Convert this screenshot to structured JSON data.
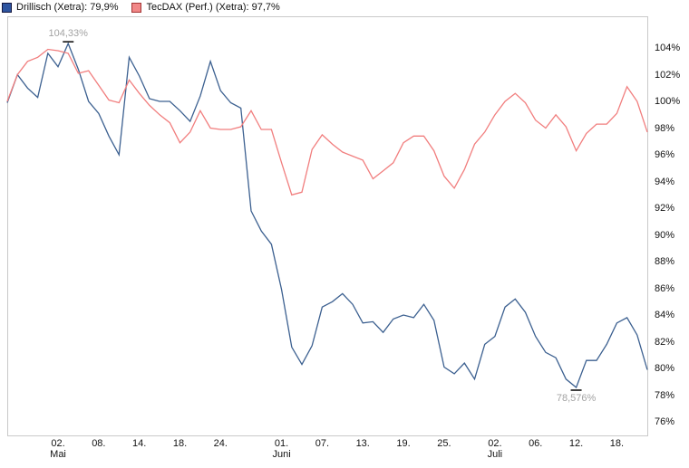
{
  "legend": {
    "items": [
      {
        "label": "Drillisch (Xetra): 79,9%",
        "color": "#2e55a0",
        "border": "#15173f"
      },
      {
        "label": "TecDAX (Perf.) (Xetra): 97,7%",
        "color": "#f18787",
        "border": "#a23535"
      }
    ]
  },
  "chart_data": {
    "type": "line",
    "title": "",
    "grid": false,
    "legend_position": "top-left",
    "y_axis": {
      "min": 76,
      "max": 104,
      "step": 2,
      "unit": "%",
      "side": "right",
      "labels": [
        "104%",
        "102%",
        "100%",
        "98%",
        "96%",
        "94%",
        "92%",
        "90%",
        "88%",
        "86%",
        "84%",
        "82%",
        "80%",
        "78%",
        "76%"
      ]
    },
    "x_axis": {
      "ticks": [
        {
          "day": "02.",
          "month": "Mai",
          "index": 5
        },
        {
          "day": "08.",
          "index": 9
        },
        {
          "day": "14.",
          "index": 13
        },
        {
          "day": "18.",
          "index": 17
        },
        {
          "day": "24.",
          "index": 21
        },
        {
          "day": "01.",
          "month": "Juni",
          "index": 27
        },
        {
          "day": "07.",
          "index": 31
        },
        {
          "day": "13.",
          "index": 35
        },
        {
          "day": "19.",
          "index": 39
        },
        {
          "day": "25.",
          "index": 43
        },
        {
          "day": "02.",
          "month": "Juli",
          "index": 48
        },
        {
          "day": "06.",
          "index": 52
        },
        {
          "day": "12.",
          "index": 56
        },
        {
          "day": "18.",
          "index": 60
        }
      ]
    },
    "series": [
      {
        "name": "Drillisch (Xetra)",
        "final_label": "79,9%",
        "color": "#3c6090",
        "values": [
          99.9,
          102.0,
          101.0,
          100.3,
          103.6,
          102.6,
          104.33,
          102.4,
          100.0,
          99.1,
          97.4,
          96.0,
          103.3,
          101.9,
          100.2,
          100.0,
          100.0,
          99.3,
          98.5,
          100.4,
          103.0,
          100.8,
          99.9,
          99.5,
          91.8,
          90.3,
          89.3,
          85.9,
          81.6,
          80.3,
          81.7,
          84.6,
          85.0,
          85.6,
          84.8,
          83.4,
          83.5,
          82.7,
          83.7,
          84.0,
          83.8,
          84.8,
          83.6,
          80.1,
          79.6,
          80.4,
          79.2,
          81.8,
          82.4,
          84.6,
          85.2,
          84.2,
          82.4,
          81.2,
          80.8,
          79.2,
          78.576,
          80.6,
          80.6,
          81.8,
          83.4,
          83.8,
          82.5,
          79.9
        ]
      },
      {
        "name": "TecDAX (Perf.) (Xetra)",
        "final_label": "97,7%",
        "color": "#f17e7e",
        "values": [
          100.0,
          102.0,
          103.0,
          103.3,
          103.9,
          103.8,
          103.6,
          102.1,
          102.3,
          101.2,
          100.1,
          99.9,
          101.6,
          100.6,
          99.7,
          99.0,
          98.4,
          96.9,
          97.7,
          99.3,
          98.0,
          97.9,
          97.9,
          98.1,
          99.3,
          97.9,
          97.9,
          95.4,
          93.0,
          93.2,
          96.4,
          97.5,
          96.8,
          96.2,
          95.9,
          95.6,
          94.2,
          94.8,
          95.4,
          96.9,
          97.4,
          97.4,
          96.3,
          94.4,
          93.5,
          94.9,
          96.8,
          97.7,
          99.0,
          100.0,
          100.6,
          99.9,
          98.6,
          98.0,
          99.0,
          98.1,
          96.3,
          97.6,
          98.3,
          98.3,
          99.1,
          101.1,
          100.0,
          97.7
        ]
      }
    ],
    "annotations": [
      {
        "text": "104,33%",
        "series": 0,
        "point_index": 6,
        "placement": "above"
      },
      {
        "text": "78,576%",
        "series": 0,
        "point_index": 56,
        "placement": "below"
      }
    ]
  },
  "colors": {
    "plot_border": "#c9c9c9",
    "annotation_text": "#a3a3a3",
    "annotation_tick": "#000000",
    "axis_text": "#121212",
    "background": "#ffffff"
  }
}
